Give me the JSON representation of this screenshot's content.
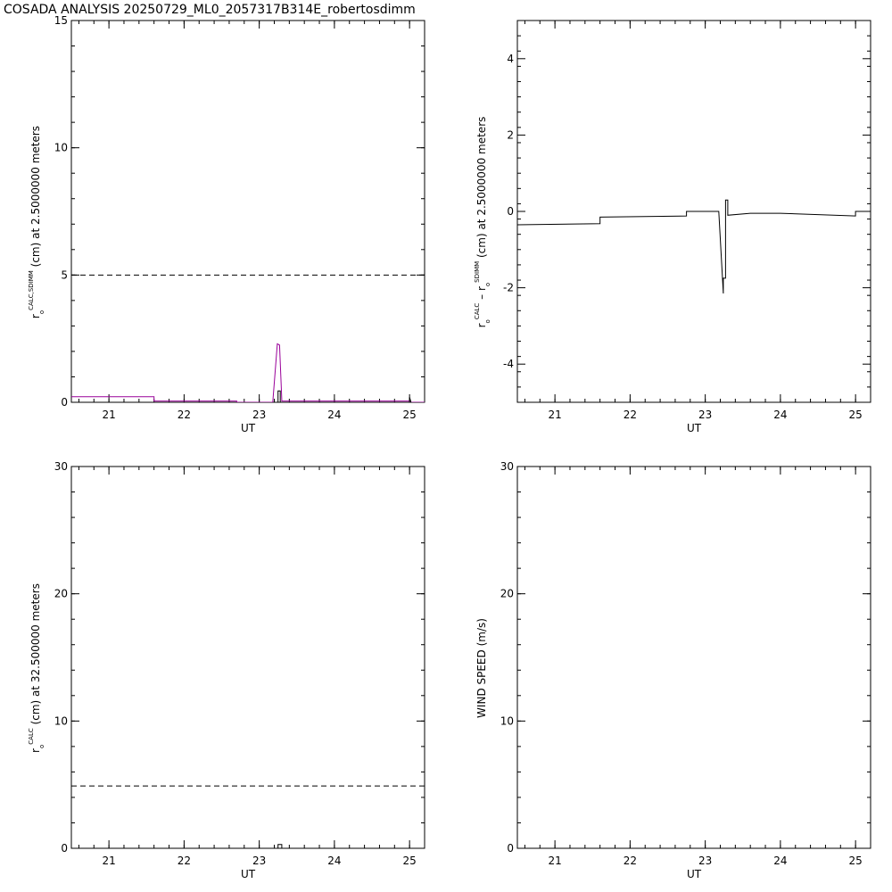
{
  "title": "COSADA ANALYSIS 20250729_ML0_2057317B314E_robertosdimm",
  "colors": {
    "primary": "#000000",
    "sdimm": "#990099"
  },
  "chart_data": [
    {
      "type": "line",
      "xlabel": "UT",
      "ylabel_parts": {
        "main": "r",
        "sub": "o",
        "sup": "CALC,SDIMM",
        "tail": "(cm)  at  2.5000000 meters"
      },
      "xlim": [
        20.5,
        25.2
      ],
      "ylim": [
        0,
        15
      ],
      "xticks": [
        21,
        22,
        23,
        24,
        25
      ],
      "xtick_labels": [
        "21",
        "22",
        "23",
        "24",
        "25"
      ],
      "yticks": [
        0,
        5,
        10,
        15
      ],
      "ytick_labels": [
        "0",
        "5",
        "10",
        "15"
      ],
      "reference_line": {
        "y": 5,
        "style": "dashed"
      },
      "series": [
        {
          "color": "#990099",
          "x": [
            20.5,
            21.6,
            21.6,
            22.7,
            22.7,
            23.18,
            23.24,
            23.27,
            23.3,
            23.3,
            25.0,
            25.0,
            25.2
          ],
          "y": [
            0.22,
            0.22,
            0.05,
            0.05,
            0.0,
            0.0,
            2.3,
            2.25,
            0.1,
            0.05,
            0.05,
            0.0,
            0.0
          ]
        },
        {
          "color": "#000000",
          "x": [
            23.22,
            23.25,
            23.25,
            23.28,
            23.28,
            23.5,
            25.0,
            25.0,
            25.02
          ],
          "y": [
            0.0,
            0.0,
            0.45,
            0.45,
            -0.05,
            -0.1,
            -0.1,
            0.2,
            0.0
          ]
        }
      ]
    },
    {
      "type": "line",
      "xlabel": "UT",
      "ylabel_parts": {
        "main1": "r",
        "sub1": "o",
        "sup1": "CALC",
        "dash": "–",
        "main2": "r",
        "sub2": "o",
        "sup2": "SDIMM",
        "tail": "(cm) at 2.5000000 meters"
      },
      "xlim": [
        20.5,
        25.2
      ],
      "ylim": [
        -5,
        5
      ],
      "xticks": [
        21,
        22,
        23,
        24,
        25
      ],
      "xtick_labels": [
        "21",
        "22",
        "23",
        "24",
        "25"
      ],
      "yticks": [
        -4,
        -2,
        0,
        2,
        4
      ],
      "ytick_labels": [
        "-4",
        "-2",
        "0",
        "2",
        "4"
      ],
      "series": [
        {
          "color": "#000000",
          "x": [
            20.5,
            21.6,
            21.6,
            22.75,
            22.75,
            23.18,
            23.24,
            23.24,
            23.27,
            23.27,
            23.3,
            23.3,
            23.6,
            24.0,
            25.0,
            25.0,
            25.2
          ],
          "y": [
            -0.35,
            -0.32,
            -0.15,
            -0.12,
            0.0,
            0.0,
            -2.15,
            -1.75,
            -1.75,
            0.3,
            0.3,
            -0.1,
            -0.05,
            -0.05,
            -0.12,
            0.0,
            0.0
          ]
        }
      ]
    },
    {
      "type": "line",
      "xlabel": "UT",
      "ylabel_parts": {
        "main": "r",
        "sub": "o",
        "sup": "CALC",
        "tail": "(cm)  at  32.500000 meters"
      },
      "xlim": [
        20.5,
        25.2
      ],
      "ylim": [
        0,
        30
      ],
      "xticks": [
        21,
        22,
        23,
        24,
        25
      ],
      "xtick_labels": [
        "21",
        "22",
        "23",
        "24",
        "25"
      ],
      "yticks": [
        0,
        10,
        20,
        30
      ],
      "ytick_labels": [
        "0",
        "10",
        "20",
        "30"
      ],
      "reference_line": {
        "y": 4.9,
        "style": "dashed"
      },
      "series": [
        {
          "color": "#000000",
          "x": [
            23.22,
            23.25,
            23.25,
            23.3,
            23.3,
            23.9,
            24.4,
            24.4
          ],
          "y": [
            0.0,
            0.0,
            0.3,
            0.3,
            0.0,
            0.0,
            -0.1,
            0.0
          ]
        }
      ]
    },
    {
      "type": "line",
      "xlabel": "UT",
      "ylabel": "WIND SPEED (m/s)",
      "xlim": [
        20.5,
        25.2
      ],
      "ylim": [
        0,
        30
      ],
      "xticks": [
        21,
        22,
        23,
        24,
        25
      ],
      "xtick_labels": [
        "21",
        "22",
        "23",
        "24",
        "25"
      ],
      "yticks": [
        0,
        10,
        20,
        30
      ],
      "ytick_labels": [
        "0",
        "10",
        "20",
        "30"
      ],
      "series": []
    }
  ]
}
